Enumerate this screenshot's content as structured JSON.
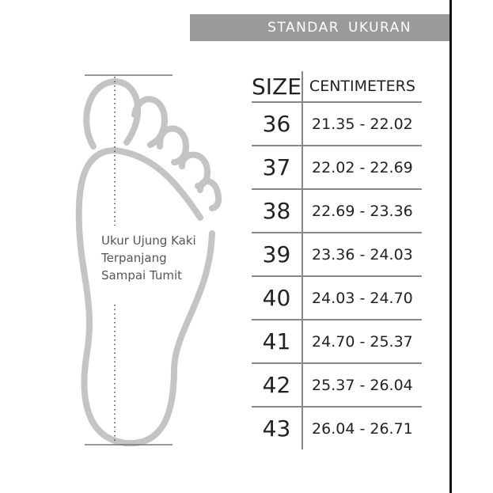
{
  "header": {
    "title": "STANDAR UKURAN"
  },
  "table": {
    "columns": [
      "SIZE",
      "CENTIMETERS"
    ],
    "rows": [
      {
        "size": "36",
        "cm": "21.35 - 22.02"
      },
      {
        "size": "37",
        "cm": "22.02 - 22.69"
      },
      {
        "size": "38",
        "cm": "22.69 - 23.36"
      },
      {
        "size": "39",
        "cm": "23.36 - 24.03"
      },
      {
        "size": "40",
        "cm": "24.03 - 24.70"
      },
      {
        "size": "41",
        "cm": "24.70 - 25.37"
      },
      {
        "size": "42",
        "cm": "25.37 - 26.04"
      },
      {
        "size": "43",
        "cm": "26.04 - 26.71"
      }
    ]
  },
  "foot": {
    "caption": [
      "Ukur Ujung Kaki",
      "Terpanjang",
      "Sampai Tumit"
    ],
    "outline_color": "#c4c4c4"
  }
}
